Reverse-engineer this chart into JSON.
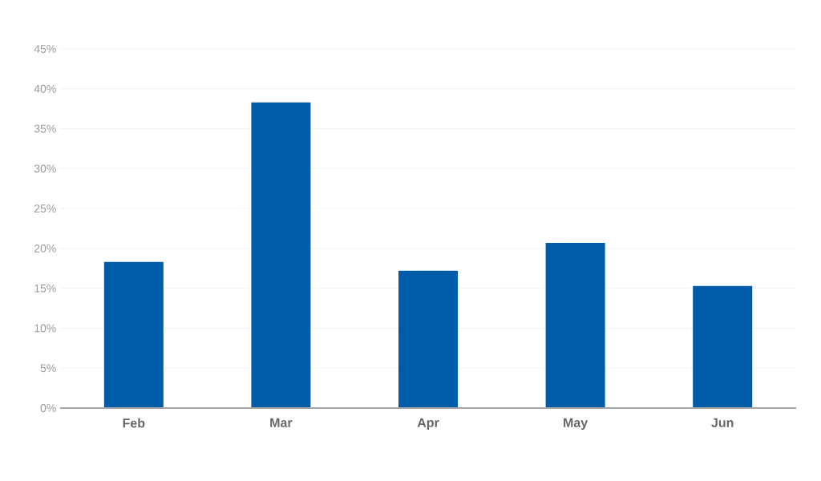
{
  "chart_data": {
    "type": "bar",
    "categories": [
      "Feb",
      "Mar",
      "Apr",
      "May",
      "Jun"
    ],
    "values": [
      18.3,
      38.3,
      17.2,
      20.7,
      15.3
    ],
    "color": "#005ca8",
    "ylim": [
      0,
      45
    ],
    "yticks": [
      {
        "value": 0,
        "label": "0%"
      },
      {
        "value": 5,
        "label": "5%"
      },
      {
        "value": 10,
        "label": "10%"
      },
      {
        "value": 15,
        "label": "15%"
      },
      {
        "value": 20,
        "label": "20%"
      },
      {
        "value": 25,
        "label": "25%"
      },
      {
        "value": 30,
        "label": "30%"
      },
      {
        "value": 35,
        "label": "35%"
      },
      {
        "value": 40,
        "label": "40%"
      },
      {
        "value": 45,
        "label": "45%"
      }
    ],
    "grid": "y"
  }
}
